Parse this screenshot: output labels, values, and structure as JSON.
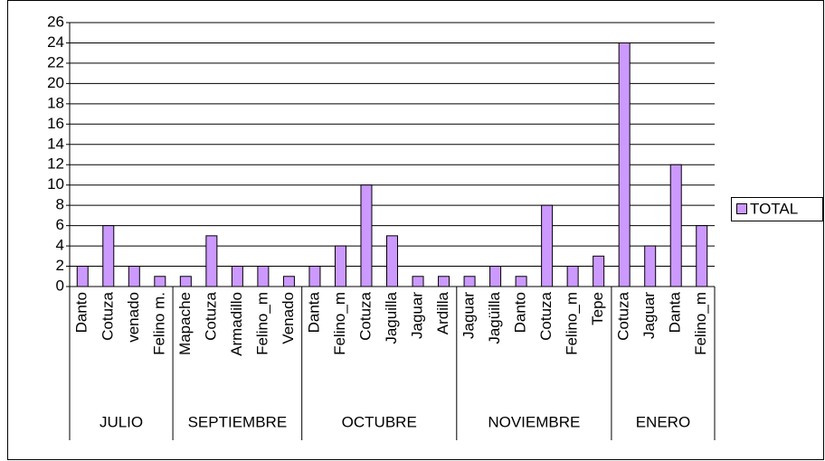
{
  "chart_data": {
    "type": "bar",
    "groups": [
      {
        "label": "JULIO",
        "categories": [
          "Danto",
          "Cotuza",
          "venado",
          "Felino m."
        ],
        "values": [
          2,
          6,
          2,
          1
        ]
      },
      {
        "label": "SEPTIEMBRE",
        "categories": [
          "Mapache",
          "Cotuza",
          "Armadillo",
          "Felino_m",
          "Venado"
        ],
        "values": [
          1,
          5,
          2,
          2,
          1
        ]
      },
      {
        "label": "OCTUBRE",
        "categories": [
          "Danta",
          "Felino_m",
          "Cotuza",
          "Jaguilla",
          "Jaguar",
          "Ardilla"
        ],
        "values": [
          2,
          4,
          10,
          5,
          1,
          1
        ]
      },
      {
        "label": "NOVIEMBRE",
        "categories": [
          "Jaguar",
          "Jagüilla",
          "Danto",
          "Cotuza",
          "Felino_m",
          "Tepe"
        ],
        "values": [
          1,
          2,
          1,
          8,
          2,
          3
        ]
      },
      {
        "label": "ENERO",
        "categories": [
          "Cotuza",
          "Jaguar",
          "Danta",
          "Felino_m"
        ],
        "values": [
          24,
          4,
          12,
          6
        ]
      }
    ],
    "series_name": "TOTAL",
    "color": "#cc99ff",
    "ylim": [
      0,
      26
    ],
    "yticks": [
      0,
      2,
      4,
      6,
      8,
      10,
      12,
      14,
      16,
      18,
      20,
      22,
      24,
      26
    ],
    "grid": true,
    "legend": "right"
  }
}
